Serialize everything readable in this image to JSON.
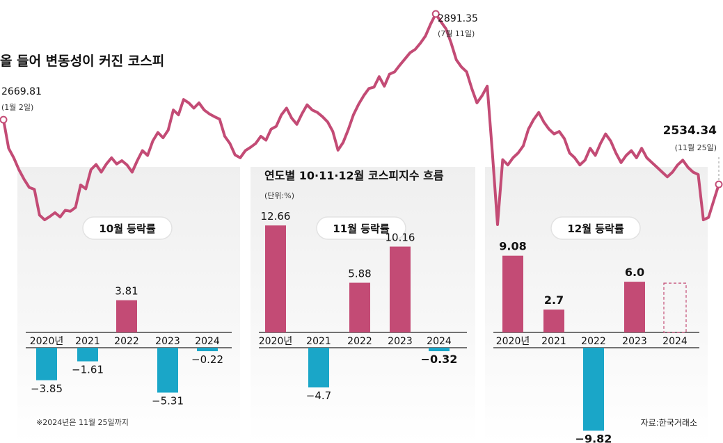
{
  "title": "올 들어 변동성이 커진 코스피",
  "subtitle": "연도별 10·11·12월 코스피지수 흐름",
  "unit": "(단위:%)",
  "footnote": "※2024년은 11월 25일까지",
  "source": "자료:한국거래소",
  "colors": {
    "line": "#c34b75",
    "positive": "#c34b75",
    "negative": "#1aa6c8",
    "panel_top": "#f0f0f0",
    "pill_border": "#e2e2e2"
  },
  "chart_data": [
    {
      "type": "line",
      "title": "올 들어 변동성이 커진 코스피",
      "series": [
        {
          "name": "코스피",
          "values": [
            2669.81,
            2610,
            2590,
            2565,
            2545,
            2528,
            2524,
            2470,
            2460,
            2467,
            2475,
            2466,
            2480,
            2478,
            2486,
            2533,
            2525,
            2565,
            2576,
            2560,
            2577,
            2590,
            2577,
            2584,
            2575,
            2560,
            2584,
            2605,
            2595,
            2625,
            2643,
            2632,
            2648,
            2690,
            2680,
            2712,
            2705,
            2694,
            2705,
            2690,
            2682,
            2676,
            2671,
            2635,
            2620,
            2596,
            2590,
            2605,
            2612,
            2620,
            2635,
            2627,
            2650,
            2656,
            2680,
            2694,
            2673,
            2660,
            2682,
            2701,
            2690,
            2685,
            2676,
            2665,
            2645,
            2606,
            2622,
            2649,
            2680,
            2702,
            2720,
            2735,
            2738,
            2760,
            2740,
            2765,
            2770,
            2784,
            2797,
            2810,
            2817,
            2830,
            2845,
            2870,
            2891.35,
            2875,
            2860,
            2830,
            2795,
            2780,
            2770,
            2735,
            2705,
            2720,
            2740,
            2600,
            2450,
            2586,
            2575,
            2590,
            2600,
            2615,
            2650,
            2670,
            2685,
            2665,
            2650,
            2640,
            2645,
            2630,
            2600,
            2590,
            2575,
            2585,
            2610,
            2595,
            2620,
            2640,
            2625,
            2600,
            2580,
            2595,
            2605,
            2590,
            2610,
            2590,
            2580,
            2570,
            2560,
            2550,
            2560,
            2575,
            2585,
            2570,
            2560,
            2555,
            2460,
            2465,
            2500,
            2534.34
          ]
        }
      ],
      "annotations": [
        {
          "value": "2669.81",
          "date": "(1월 2일)"
        },
        {
          "value": "2891.35",
          "date": "(7월 11일)"
        },
        {
          "value": "2534.34",
          "date": "(11월 25일)"
        }
      ]
    },
    {
      "type": "bar",
      "title": "10월 등락률",
      "categories": [
        "2020년",
        "2021",
        "2022",
        "2023",
        "2024"
      ],
      "values": [
        -3.85,
        -1.61,
        3.81,
        -5.31,
        -0.22
      ],
      "labels": [
        "−3.85",
        "−1.61",
        "3.81",
        "−5.31",
        "−0.22"
      ],
      "ylim": [
        -10,
        13
      ]
    },
    {
      "type": "bar",
      "title": "11월 등락률",
      "categories": [
        "2020년",
        "2021",
        "2022",
        "2023",
        "2024"
      ],
      "values": [
        12.66,
        -4.7,
        5.88,
        10.16,
        -0.32
      ],
      "labels": [
        "12.66",
        "−4.7",
        "5.88",
        "10.16",
        "−0.32"
      ],
      "ylim": [
        -10,
        13
      ]
    },
    {
      "type": "bar",
      "title": "12월 등락률",
      "categories": [
        "2020년",
        "2021",
        "2022",
        "2023",
        "2024"
      ],
      "values": [
        9.08,
        2.7,
        -9.82,
        6.0,
        null
      ],
      "labels": [
        "9.08",
        "2.7",
        "−9.82",
        "6.0",
        ""
      ],
      "ylim": [
        -10,
        13
      ]
    }
  ]
}
